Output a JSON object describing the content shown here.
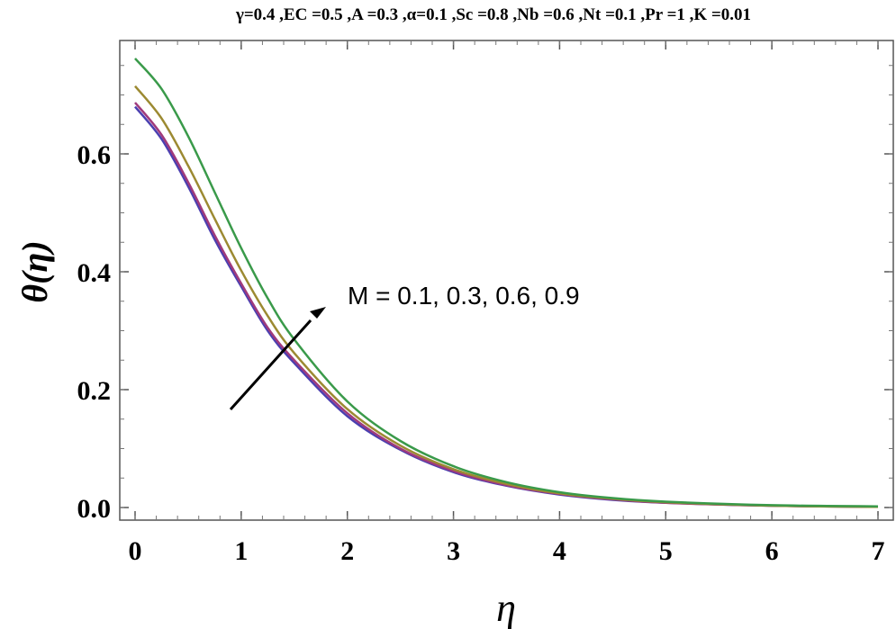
{
  "chart_data": {
    "type": "line",
    "title": "γ=0.4 ,EC =0.5 ,A =0.3 ,α=0.1 ,Sc =0.8 ,Nb =0.6 ,Nt =0.1 ,Pr =1 ,K =0.01",
    "xlabel": "η",
    "ylabel": "θ(η)",
    "xlim": [
      0,
      7
    ],
    "ylim": [
      0,
      0.76
    ],
    "xticks": [
      "0",
      "1",
      "2",
      "3",
      "4",
      "5",
      "6",
      "7"
    ],
    "yticks": [
      "0.0",
      "0.2",
      "0.4",
      "0.6"
    ],
    "grid": false,
    "annotation": "M = 0.1, 0.3, 0.6, 0.9",
    "x": [
      0,
      0.25,
      0.5,
      0.75,
      1,
      1.25,
      1.5,
      2,
      2.5,
      3,
      3.5,
      4,
      4.5,
      5,
      6,
      7
    ],
    "series": [
      {
        "color": "#4b3fb0",
        "values": [
          0.68,
          0.625,
          0.545,
          0.455,
          0.375,
          0.3,
          0.245,
          0.155,
          0.098,
          0.06,
          0.037,
          0.022,
          0.013,
          0.008,
          0.003,
          0.001
        ]
      },
      {
        "color": "#a03a7c",
        "values": [
          0.687,
          0.632,
          0.552,
          0.462,
          0.38,
          0.305,
          0.25,
          0.16,
          0.1,
          0.062,
          0.038,
          0.023,
          0.014,
          0.008,
          0.003,
          0.001
        ]
      },
      {
        "color": "#9c8a32",
        "values": [
          0.715,
          0.66,
          0.58,
          0.49,
          0.402,
          0.325,
          0.262,
          0.167,
          0.105,
          0.065,
          0.04,
          0.024,
          0.015,
          0.009,
          0.003,
          0.001
        ]
      },
      {
        "color": "#3a9a4a",
        "values": [
          0.762,
          0.71,
          0.63,
          0.535,
          0.44,
          0.355,
          0.285,
          0.18,
          0.113,
          0.07,
          0.043,
          0.026,
          0.016,
          0.01,
          0.004,
          0.002
        ]
      }
    ]
  }
}
